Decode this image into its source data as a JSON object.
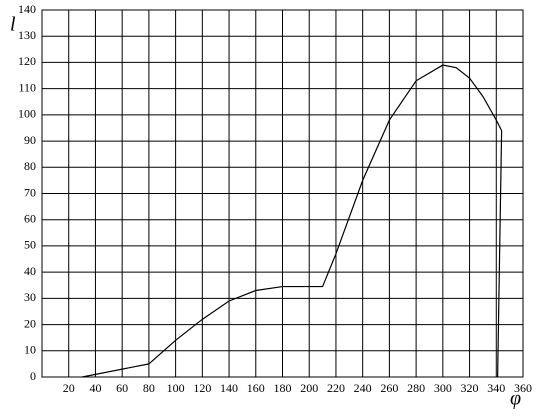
{
  "chart_data": {
    "type": "line",
    "x_label": "φ",
    "y_label": "l",
    "x": [
      30,
      80,
      100,
      120,
      140,
      160,
      180,
      210,
      220,
      240,
      260,
      280,
      300,
      310,
      320,
      330,
      340,
      344,
      341
    ],
    "series": [
      {
        "color": "#000000",
        "values": [
          0,
          5,
          14,
          22,
          29,
          33,
          34.5,
          34.5,
          47,
          75,
          98,
          113,
          119,
          118,
          114,
          107,
          98,
          94,
          0
        ]
      }
    ],
    "xlim": [
      0,
      360
    ],
    "ylim": [
      0,
      140
    ],
    "xticks": [
      20,
      40,
      60,
      80,
      100,
      120,
      140,
      160,
      180,
      200,
      220,
      240,
      260,
      280,
      300,
      320,
      340,
      360
    ],
    "yticks": [
      0,
      10,
      20,
      30,
      40,
      50,
      60,
      70,
      80,
      90,
      100,
      110,
      120,
      130,
      140
    ],
    "grid": true
  }
}
